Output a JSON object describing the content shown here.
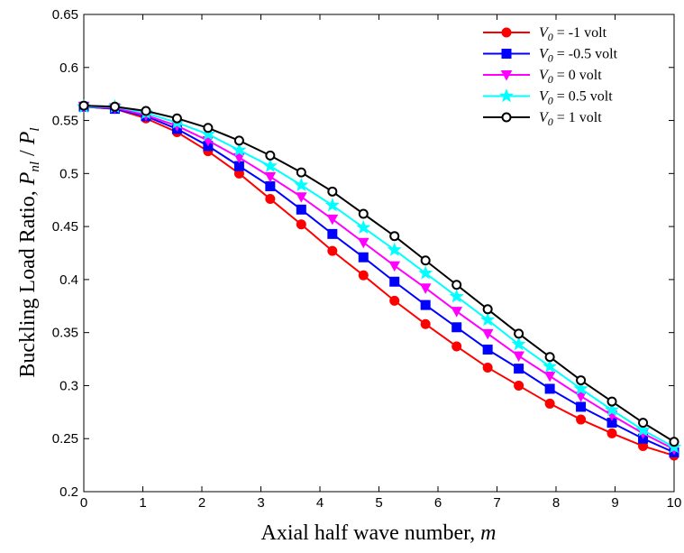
{
  "chart_data": {
    "type": "line",
    "title": "",
    "xlabel": "Axial half wave number, ",
    "xlabel_var": "m",
    "ylabel": "Buckling Load Ratio, ",
    "ylabel_num": "P",
    "ylabel_num_sub": "nl",
    "ylabel_sep": " / ",
    "ylabel_den": "P",
    "ylabel_den_sub": "l",
    "xlim": [
      0,
      10
    ],
    "ylim": [
      0.2,
      0.65
    ],
    "xticks": [
      "0",
      "1",
      "2",
      "3",
      "4",
      "5",
      "6",
      "7",
      "8",
      "9",
      "10"
    ],
    "yticks": [
      "0.2",
      "0.25",
      "0.3",
      "0.35",
      "0.4",
      "0.45",
      "0.5",
      "0.55",
      "0.6",
      "0.65"
    ],
    "grid": false,
    "legend_position": "top-right",
    "x": [
      0,
      0.526,
      1.053,
      1.579,
      2.105,
      2.632,
      3.158,
      3.684,
      4.211,
      4.737,
      5.263,
      5.789,
      6.316,
      6.842,
      7.368,
      7.895,
      8.421,
      8.947,
      9.474,
      10
    ],
    "series": [
      {
        "name_var": "V",
        "name_sub": "0",
        "name_rest": " = -1 volt",
        "color": "#ff0000",
        "marker": "circle",
        "values": [
          0.563,
          0.561,
          0.552,
          0.539,
          0.521,
          0.5,
          0.476,
          0.452,
          0.427,
          0.404,
          0.38,
          0.358,
          0.337,
          0.317,
          0.3,
          0.283,
          0.268,
          0.255,
          0.243,
          0.234
        ]
      },
      {
        "name_var": "V",
        "name_sub": "0",
        "name_rest": " = -0.5 volt",
        "color": "#0000ff",
        "marker": "square",
        "values": [
          0.563,
          0.561,
          0.554,
          0.542,
          0.526,
          0.507,
          0.488,
          0.466,
          0.443,
          0.421,
          0.398,
          0.376,
          0.355,
          0.334,
          0.316,
          0.297,
          0.28,
          0.265,
          0.25,
          0.237
        ]
      },
      {
        "name_var": "V",
        "name_sub": "0",
        "name_rest": " = 0 volt",
        "color": "#ff00ff",
        "marker": "triangle-down",
        "values": [
          0.563,
          0.562,
          0.555,
          0.545,
          0.531,
          0.515,
          0.497,
          0.478,
          0.457,
          0.435,
          0.413,
          0.392,
          0.37,
          0.349,
          0.328,
          0.309,
          0.29,
          0.272,
          0.255,
          0.24
        ]
      },
      {
        "name_var": "V",
        "name_sub": "0",
        "name_rest": " = 0.5 volt",
        "color": "#00ffff",
        "marker": "star",
        "values": [
          0.563,
          0.563,
          0.557,
          0.548,
          0.537,
          0.522,
          0.507,
          0.489,
          0.47,
          0.449,
          0.428,
          0.406,
          0.384,
          0.362,
          0.339,
          0.318,
          0.297,
          0.277,
          0.258,
          0.242
        ]
      },
      {
        "name_var": "V",
        "name_sub": "0",
        "name_rest": " = 1 volt",
        "color": "#000000",
        "marker": "circle-open",
        "values": [
          0.564,
          0.563,
          0.559,
          0.552,
          0.543,
          0.531,
          0.517,
          0.501,
          0.483,
          0.462,
          0.441,
          0.418,
          0.395,
          0.372,
          0.349,
          0.327,
          0.305,
          0.285,
          0.265,
          0.247
        ]
      }
    ]
  }
}
